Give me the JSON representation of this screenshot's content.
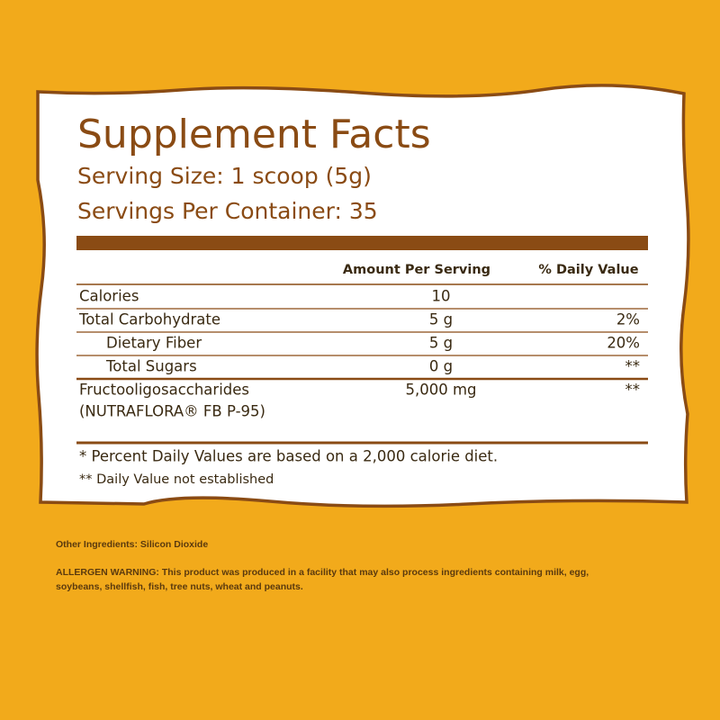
{
  "panel": {
    "title": "Supplement Facts",
    "serving_size": "Serving Size: 1 scoop (5g)",
    "servings_per_container": "Servings Per Container: 35",
    "columns": [
      "Amount Per Serving",
      "% Daily Value"
    ],
    "rows": [
      {
        "label": [
          "Calories"
        ],
        "amount": "10",
        "daily_value": "",
        "indent": false
      },
      {
        "label": [
          "Total Carbohydrate"
        ],
        "amount": "5 g",
        "daily_value": "2%",
        "indent": false
      },
      {
        "label": [
          "Dietary Fiber"
        ],
        "amount": "5 g",
        "daily_value": "20%",
        "indent": true
      },
      {
        "label": [
          "Total Sugars"
        ],
        "amount": "0 g",
        "daily_value": "**",
        "indent": true
      },
      {
        "label": [
          "Fructooligosaccharides",
          "(NUTRAFLORA® FB P-95)"
        ],
        "amount": "5,000 mg",
        "daily_value": "**",
        "indent": false
      }
    ],
    "footnotes": [
      "* Percent Daily Values are based on a 2,000 calorie diet.",
      "** Daily Value not established"
    ]
  },
  "other_ingredients": "Other Ingredients: Silicon Dioxide",
  "allergen_warning": [
    "ALLERGEN WARNING: This product was produced in a facility that may also process ingredients containing milk, egg,",
    "soybeans, shellfish, fish, tree nuts, wheat and peanuts."
  ]
}
